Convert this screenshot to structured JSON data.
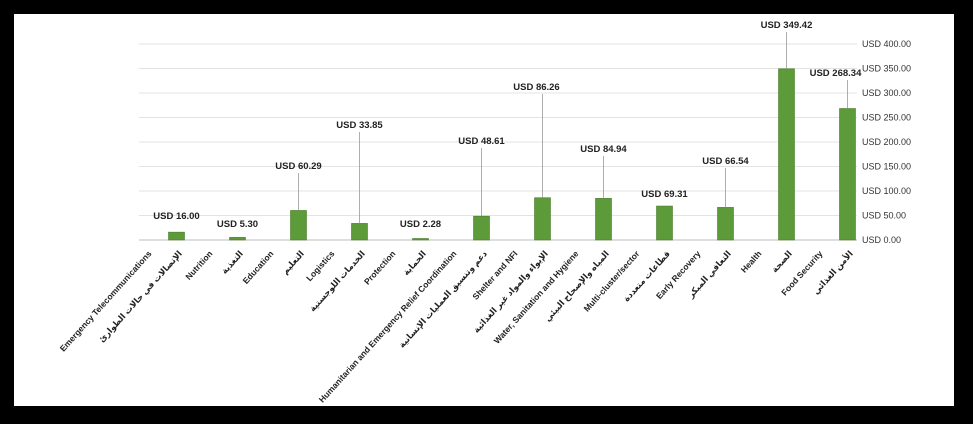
{
  "chart_data": {
    "type": "bar",
    "title": "",
    "xlabel": "",
    "ylabel": "",
    "ylim": [
      0,
      400
    ],
    "y_ticks": [
      "USD 0.00",
      "USD 50.00",
      "USD 100.00",
      "USD 150.00",
      "USD 200.00",
      "USD 250.00",
      "USD 300.00",
      "USD 350.00",
      "USD 400.00"
    ],
    "y_axis_position": "right",
    "grid": true,
    "legend": "none",
    "bar_color": "#5d9a3a",
    "categories": [
      "Emergency Telecommunications",
      "الإتصالات في حالات الطوارئ",
      "Nutrition",
      "التغذية",
      "Education",
      "التعليم",
      "Logistics",
      "الخدمات اللوجستية",
      "Protection",
      "الحماية",
      "Humanitarian and Emergency Relief Coordination",
      "دعم وتنسيق العمليات الإنسانية",
      "Shelter and NFI",
      "الإيواء والمواد غير الغذائية",
      "Water, Sanitation and Hygiene",
      "المياه والإصحاح البيئي",
      "Multi-cluster/sector",
      "قطاعات متعددة",
      "Early Recovery",
      "التعافي المبكر",
      "Health",
      "الصحة",
      "Food Security",
      "الأمن الغذائي"
    ],
    "bars": [
      {
        "slot": 1,
        "value": 16.0,
        "label": "USD 16.00"
      },
      {
        "slot": 3,
        "value": 5.3,
        "label": "USD 5.30"
      },
      {
        "slot": 5,
        "value": 60.29,
        "label": "USD 60.29"
      },
      {
        "slot": 7,
        "value": 33.85,
        "label": "USD 33.85"
      },
      {
        "slot": 9,
        "value": 2.28,
        "label": "USD 2.28"
      },
      {
        "slot": 11,
        "value": 48.61,
        "label": "USD 48.61"
      },
      {
        "slot": 13,
        "value": 86.26,
        "label": "USD 86.26"
      },
      {
        "slot": 15,
        "value": 84.94,
        "label": "USD 84.94"
      },
      {
        "slot": 17,
        "value": 69.31,
        "label": "USD 69.31"
      },
      {
        "slot": 19,
        "value": 66.54,
        "label": "USD 66.54"
      },
      {
        "slot": 21,
        "value": 349.42,
        "label": "USD 349.42"
      },
      {
        "slot": 23,
        "value": 268.34,
        "label": "USD 268.34"
      }
    ]
  }
}
